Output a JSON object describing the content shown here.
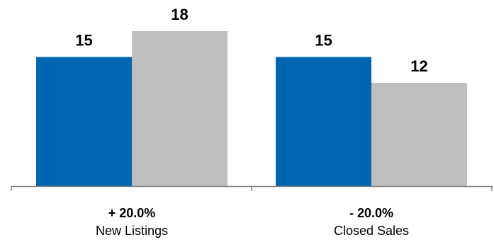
{
  "chart_data": {
    "type": "bar",
    "categories": [
      "New Listings",
      "Closed Sales"
    ],
    "category_changes": [
      "+ 20.0%",
      "- 20.0%"
    ],
    "series": [
      {
        "values": [
          15,
          15
        ],
        "color": "#0066b2"
      },
      {
        "values": [
          18,
          12
        ],
        "color": "#bfbfbf"
      }
    ],
    "data_labels": [
      [
        "15",
        "15"
      ],
      [
        "18",
        "12"
      ]
    ],
    "ylim": [
      0,
      18
    ],
    "grid": false,
    "legend": "none",
    "axis_color": "#808080"
  }
}
